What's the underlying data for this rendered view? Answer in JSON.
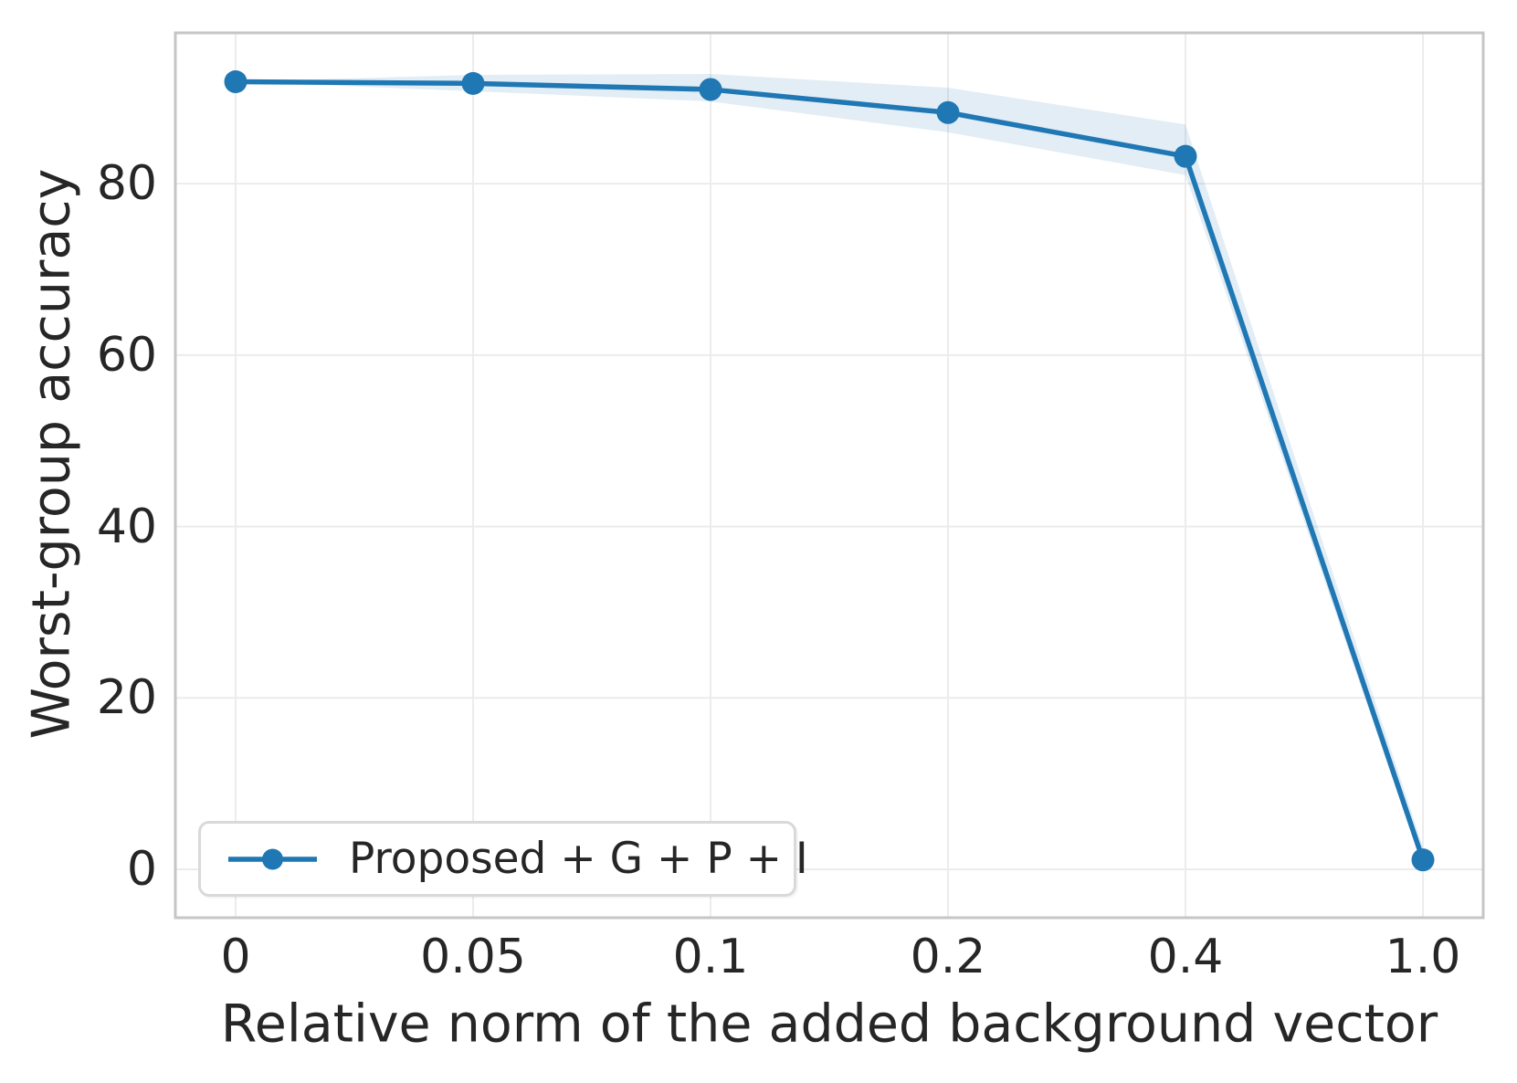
{
  "chart_data": {
    "type": "line",
    "title": "",
    "xlabel": "Relative norm of the added background vector",
    "ylabel": "Worst-group accuracy",
    "categories": [
      "0",
      "0.05",
      "0.1",
      "0.2",
      "0.4",
      "1.0"
    ],
    "x_numeric": [
      0,
      0.05,
      0.1,
      0.2,
      0.4,
      1.0
    ],
    "series": [
      {
        "name": "Proposed + G + P + I",
        "values": [
          91.9,
          91.7,
          91.0,
          88.3,
          83.2,
          1.1
        ],
        "band_upper": [
          91.9,
          92.7,
          92.8,
          91.2,
          86.9,
          2.6
        ],
        "band_lower": [
          91.9,
          90.8,
          89.6,
          86.0,
          81.0,
          0.2
        ],
        "color": "#1f77b4",
        "band_opacity": 0.13,
        "marker": "circle"
      }
    ],
    "yticks": [
      0,
      20,
      40,
      60,
      80
    ],
    "ylim": [
      -5.65,
      97.6
    ],
    "grid": true,
    "legend_position": "lower left",
    "style": {
      "grid_color": "#ececec",
      "spine_color": "#c6c6c6",
      "text_color": "#262626",
      "background": "#ffffff"
    }
  }
}
